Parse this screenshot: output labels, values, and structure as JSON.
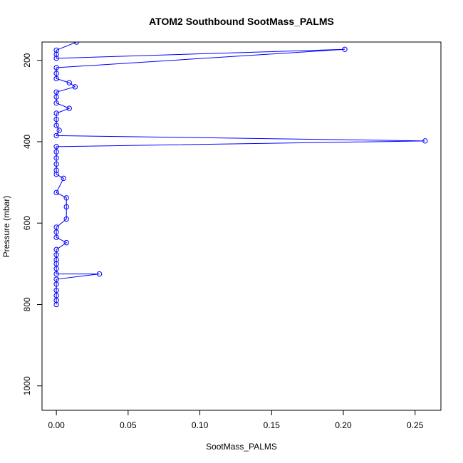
{
  "chart_data": {
    "type": "line",
    "title": "ATOM2 Southbound SootMass_PALMS",
    "xlabel": "SootMass_PALMS",
    "ylabel": "Pressure (mbar)",
    "xlim": [
      -0.01,
      0.268
    ],
    "ylim": [
      1060,
      155
    ],
    "y_reversed": true,
    "x_ticks": [
      0.0,
      0.05,
      0.1,
      0.15,
      0.2,
      0.25
    ],
    "x_tick_labels": [
      "0.00",
      "0.05",
      "0.10",
      "0.15",
      "0.20",
      "0.25"
    ],
    "y_ticks": [
      200,
      400,
      600,
      800,
      1000
    ],
    "y_tick_labels": [
      "200",
      "400",
      "600",
      "800",
      "1000"
    ],
    "grid": false,
    "legend": "none",
    "series_color": "#0000ff",
    "series": [
      {
        "markers": "open-circle",
        "points": [
          [
            0.0,
            800
          ],
          [
            0.0,
            790
          ],
          [
            0.0,
            778
          ],
          [
            0.0,
            765
          ],
          [
            0.0,
            750
          ],
          [
            0.0,
            738
          ],
          [
            0.03,
            725
          ],
          [
            0.0,
            725
          ],
          [
            0.0,
            712
          ],
          [
            0.0,
            700
          ],
          [
            0.0,
            690
          ],
          [
            0.0,
            678
          ],
          [
            0.0,
            665
          ],
          [
            0.007,
            648
          ],
          [
            0.0,
            635
          ],
          [
            0.0,
            622
          ],
          [
            0.0,
            610
          ],
          [
            0.007,
            590
          ],
          [
            0.007,
            560
          ],
          [
            0.007,
            538
          ],
          [
            0.0,
            525
          ],
          [
            0.005,
            490
          ],
          [
            0.0,
            480
          ],
          [
            0.0,
            470
          ],
          [
            0.0,
            455
          ],
          [
            0.0,
            440
          ],
          [
            0.0,
            425
          ],
          [
            0.0,
            412
          ],
          [
            0.257,
            398
          ],
          [
            0.0,
            385
          ],
          [
            0.002,
            372
          ],
          [
            0.0,
            360
          ],
          [
            0.0,
            345
          ],
          [
            0.0,
            330
          ],
          [
            0.009,
            318
          ],
          [
            0.0,
            305
          ],
          [
            0.0,
            290
          ],
          [
            0.0,
            278
          ],
          [
            0.013,
            265
          ],
          [
            0.009,
            255
          ],
          [
            0.0,
            245
          ],
          [
            0.0,
            232
          ],
          [
            0.0,
            218
          ],
          [
            0.201,
            173
          ],
          [
            0.0,
            195
          ],
          [
            0.0,
            185
          ],
          [
            0.0,
            175
          ],
          [
            0.014,
            155
          ]
        ]
      }
    ]
  }
}
